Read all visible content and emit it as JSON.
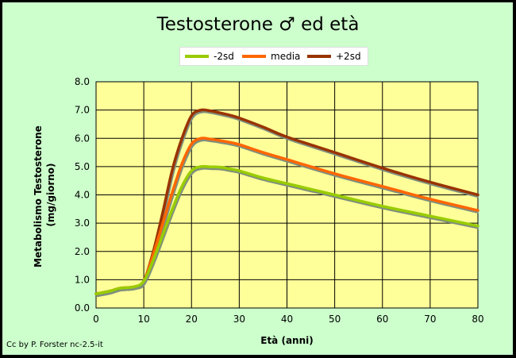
{
  "chart_data": {
    "type": "line",
    "title": "Testosterone ♂ ed età",
    "xlabel": "Età (anni)",
    "ylabel_line1": "Metabolismo Testosterone",
    "ylabel_line2": "(mg/giorno)",
    "xlim": [
      0,
      80
    ],
    "ylim": [
      0,
      8
    ],
    "xticks": [
      0,
      10,
      20,
      30,
      40,
      50,
      60,
      70,
      80
    ],
    "yticks": [
      0,
      1,
      2,
      3,
      4,
      5,
      6,
      7,
      8
    ],
    "xtick_labels": [
      "0",
      "10",
      "20",
      "30",
      "40",
      "50",
      "60",
      "70",
      "80"
    ],
    "ytick_labels": [
      "0.0",
      "1.0",
      "2.0",
      "3.0",
      "4.0",
      "5.0",
      "6.0",
      "7.0",
      "8.0"
    ],
    "grid": true,
    "legend_position": "top-center",
    "background": "#ccffcc",
    "plot_background": "#ffff99",
    "series": [
      {
        "name": "-2sd",
        "color": "#99cc00",
        "x": [
          0,
          3,
          5,
          8,
          10,
          12,
          14,
          16,
          18,
          20,
          22,
          24,
          26,
          28,
          30,
          35,
          40,
          50,
          60,
          70,
          80
        ],
        "y": [
          0.5,
          0.6,
          0.7,
          0.75,
          0.95,
          1.7,
          2.6,
          3.5,
          4.3,
          4.85,
          5.0,
          4.99,
          4.98,
          4.92,
          4.85,
          4.6,
          4.4,
          4.0,
          3.6,
          3.25,
          2.9
        ]
      },
      {
        "name": "media",
        "color": "#ff6600",
        "x": [
          0,
          3,
          5,
          8,
          10,
          12,
          14,
          16,
          18,
          20,
          22,
          24,
          26,
          28,
          30,
          35,
          40,
          50,
          60,
          70,
          80
        ],
        "y": [
          0.5,
          0.6,
          0.7,
          0.75,
          0.95,
          1.9,
          3.0,
          4.1,
          5.1,
          5.8,
          6.0,
          5.97,
          5.92,
          5.86,
          5.78,
          5.5,
          5.25,
          4.75,
          4.3,
          3.85,
          3.45
        ]
      },
      {
        "name": "+2sd",
        "color": "#993300",
        "x": [
          0,
          3,
          5,
          8,
          10,
          12,
          14,
          16,
          18,
          20,
          22,
          24,
          26,
          28,
          30,
          35,
          40,
          50,
          60,
          70,
          80
        ],
        "y": [
          0.5,
          0.6,
          0.7,
          0.75,
          0.95,
          2.0,
          3.4,
          4.9,
          6.0,
          6.8,
          7.0,
          6.97,
          6.9,
          6.82,
          6.72,
          6.4,
          6.05,
          5.5,
          4.95,
          4.45,
          4.0
        ]
      }
    ]
  },
  "credit": "Cc by P. Forster nc-2.5-it"
}
